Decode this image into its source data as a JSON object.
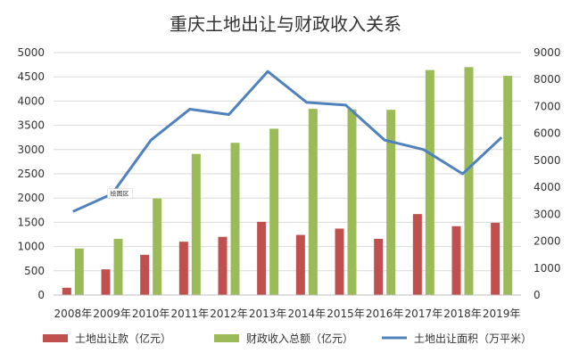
{
  "chart_data": {
    "type": "bar",
    "title": "重庆土地出让与财政收入关系",
    "categories": [
      "2008年",
      "2009年",
      "2010年",
      "2011年",
      "2012年",
      "2013年",
      "2014年",
      "2015年",
      "2016年",
      "2017年",
      "2018年",
      "2019年"
    ],
    "series": [
      {
        "name": "土地出让款（亿元）",
        "type": "bar",
        "axis": "left",
        "color": "#c0504d",
        "values": [
          150,
          530,
          830,
          1100,
          1200,
          1510,
          1240,
          1370,
          1160,
          1670,
          1420,
          1490
        ]
      },
      {
        "name": "财政收入总额（亿元）",
        "type": "bar",
        "axis": "left",
        "color": "#9bbb59",
        "values": [
          960,
          1160,
          1990,
          2910,
          3140,
          3430,
          3840,
          3830,
          3820,
          4640,
          4700,
          4520
        ]
      },
      {
        "name": "土地出让面积（万平米）",
        "type": "line",
        "axis": "right",
        "color": "#4f81bd",
        "values": [
          3100,
          3750,
          5750,
          6900,
          6700,
          8300,
          7150,
          7050,
          5750,
          5400,
          4500,
          5850
        ]
      }
    ],
    "y_left": {
      "min": 0,
      "max": 5000,
      "step": 500,
      "ticks": [
        "0",
        "500",
        "1000",
        "1500",
        "2000",
        "2500",
        "3000",
        "3500",
        "4000",
        "4500",
        "5000"
      ]
    },
    "y_right": {
      "min": 0,
      "max": 9000,
      "step": 1000,
      "ticks": [
        "0",
        "1000",
        "2000",
        "3000",
        "4000",
        "5000",
        "6000",
        "7000",
        "8000",
        "9000"
      ]
    },
    "grid": true,
    "legend_position": "bottom",
    "annotation": "绘图区"
  }
}
